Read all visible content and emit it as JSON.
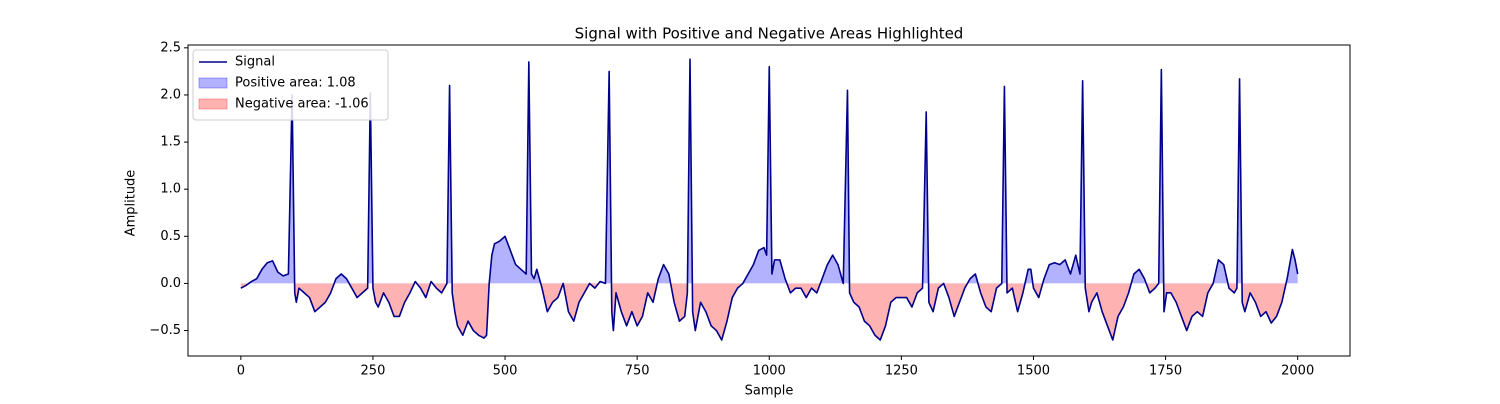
{
  "chart_data": {
    "type": "line",
    "title": "Signal with Positive and Negative Areas Highlighted",
    "x_label": "Sample",
    "y_label": "Amplitude",
    "x": [
      0,
      10,
      20,
      30,
      40,
      50,
      60,
      70,
      80,
      90,
      97,
      102,
      105,
      110,
      120,
      130,
      140,
      150,
      160,
      170,
      180,
      190,
      200,
      210,
      220,
      230,
      240,
      245,
      250,
      255,
      260,
      270,
      280,
      290,
      300,
      310,
      320,
      330,
      340,
      350,
      360,
      370,
      380,
      390,
      395,
      400,
      405,
      410,
      420,
      430,
      440,
      450,
      460,
      465,
      470,
      475,
      480,
      490,
      500,
      510,
      520,
      530,
      540,
      545,
      550,
      555,
      560,
      570,
      580,
      590,
      600,
      610,
      620,
      630,
      640,
      650,
      660,
      670,
      680,
      690,
      697,
      702,
      705,
      710,
      720,
      730,
      740,
      750,
      760,
      770,
      780,
      790,
      800,
      810,
      820,
      830,
      840,
      845,
      850,
      855,
      860,
      870,
      880,
      890,
      900,
      910,
      920,
      930,
      940,
      950,
      960,
      970,
      980,
      990,
      995,
      1000,
      1005,
      1010,
      1020,
      1030,
      1040,
      1050,
      1060,
      1070,
      1080,
      1090,
      1100,
      1110,
      1120,
      1130,
      1140,
      1148,
      1152,
      1160,
      1170,
      1180,
      1190,
      1200,
      1210,
      1220,
      1230,
      1240,
      1250,
      1260,
      1270,
      1280,
      1290,
      1297,
      1302,
      1310,
      1320,
      1330,
      1340,
      1350,
      1360,
      1370,
      1380,
      1390,
      1400,
      1410,
      1420,
      1430,
      1440,
      1445,
      1450,
      1460,
      1470,
      1480,
      1490,
      1495,
      1500,
      1510,
      1520,
      1530,
      1540,
      1550,
      1560,
      1570,
      1580,
      1588,
      1593,
      1598,
      1605,
      1610,
      1620,
      1630,
      1640,
      1650,
      1660,
      1670,
      1680,
      1690,
      1700,
      1710,
      1720,
      1730,
      1737,
      1742,
      1747,
      1752,
      1760,
      1770,
      1780,
      1790,
      1800,
      1810,
      1820,
      1830,
      1840,
      1850,
      1860,
      1870,
      1880,
      1885,
      1890,
      1895,
      1900,
      1910,
      1920,
      1930,
      1940,
      1950,
      1960,
      1970,
      1980,
      1990,
      1995,
      2000
    ],
    "series": [
      {
        "name": "Signal",
        "color": "#00008b",
        "values": [
          -0.05,
          -0.02,
          0.02,
          0.05,
          0.15,
          0.22,
          0.24,
          0.12,
          0.08,
          0.1,
          2.0,
          -0.1,
          -0.2,
          -0.05,
          -0.1,
          -0.15,
          -0.3,
          -0.25,
          -0.2,
          -0.1,
          0.05,
          0.1,
          0.05,
          -0.05,
          -0.15,
          -0.1,
          -0.05,
          2.02,
          -0.05,
          -0.2,
          -0.25,
          -0.1,
          -0.2,
          -0.35,
          -0.35,
          -0.2,
          -0.1,
          0.02,
          -0.05,
          -0.15,
          0.02,
          -0.05,
          -0.1,
          0.0,
          2.1,
          -0.1,
          -0.3,
          -0.45,
          -0.55,
          -0.4,
          -0.5,
          -0.55,
          -0.58,
          -0.55,
          0.0,
          0.3,
          0.42,
          0.45,
          0.5,
          0.35,
          0.2,
          0.15,
          0.1,
          2.35,
          0.1,
          0.05,
          0.15,
          -0.05,
          -0.3,
          -0.2,
          -0.15,
          0.0,
          -0.3,
          -0.4,
          -0.2,
          -0.1,
          0.0,
          -0.05,
          0.02,
          0.0,
          2.25,
          -0.3,
          -0.5,
          -0.1,
          -0.3,
          -0.45,
          -0.3,
          -0.45,
          -0.35,
          -0.1,
          -0.2,
          0.05,
          0.2,
          0.1,
          -0.2,
          -0.4,
          -0.35,
          -0.1,
          2.38,
          -0.3,
          -0.5,
          -0.2,
          -0.3,
          -0.45,
          -0.5,
          -0.6,
          -0.4,
          -0.15,
          -0.05,
          0.0,
          0.1,
          0.2,
          0.35,
          0.38,
          0.3,
          2.3,
          0.1,
          0.25,
          0.25,
          0.05,
          -0.1,
          -0.05,
          -0.05,
          -0.15,
          -0.05,
          -0.1,
          0.05,
          0.2,
          0.3,
          0.2,
          0.0,
          2.05,
          -0.1,
          -0.2,
          -0.25,
          -0.4,
          -0.45,
          -0.55,
          -0.6,
          -0.45,
          -0.2,
          -0.15,
          -0.15,
          -0.15,
          -0.25,
          -0.1,
          -0.05,
          1.82,
          -0.2,
          -0.3,
          -0.05,
          0.0,
          -0.15,
          -0.35,
          -0.2,
          -0.05,
          0.05,
          0.1,
          -0.1,
          -0.25,
          -0.3,
          -0.05,
          0.0,
          2.09,
          -0.1,
          -0.05,
          -0.3,
          -0.1,
          0.15,
          0.15,
          -0.05,
          -0.15,
          0.05,
          0.2,
          0.22,
          0.2,
          0.25,
          0.1,
          0.3,
          0.1,
          2.15,
          -0.05,
          -0.3,
          -0.2,
          -0.1,
          -0.3,
          -0.45,
          -0.6,
          -0.35,
          -0.25,
          -0.1,
          0.1,
          0.15,
          0.05,
          -0.1,
          -0.05,
          0.0,
          2.27,
          -0.3,
          -0.1,
          -0.1,
          -0.2,
          -0.35,
          -0.5,
          -0.35,
          -0.3,
          -0.35,
          -0.1,
          0.0,
          0.25,
          0.2,
          -0.05,
          -0.1,
          -0.05,
          2.17,
          -0.2,
          -0.3,
          -0.1,
          -0.2,
          -0.35,
          -0.3,
          -0.42,
          -0.35,
          -0.2,
          0.05,
          0.36,
          0.25,
          0.1
        ]
      }
    ],
    "fills": [
      {
        "name": "Positive area: 1.08",
        "color": "#0000ff",
        "side": "positive"
      },
      {
        "name": "Negative area: -1.06",
        "color": "#ff0000",
        "side": "negative"
      }
    ],
    "xlim": [
      -100,
      2099
    ],
    "ylim": [
      -0.77,
      2.53
    ],
    "xticks": [
      0,
      250,
      500,
      750,
      1000,
      1250,
      1500,
      1750,
      2000
    ],
    "yticks": [
      {
        "value": -0.5,
        "label": "−0.5"
      },
      {
        "value": 0,
        "label": "0.0"
      },
      0.5,
      {
        "value": 1,
        "label": "1.0"
      },
      1.5,
      {
        "value": 2,
        "label": "2.0"
      },
      2.5
    ],
    "legend": "upper left",
    "grid": false
  }
}
